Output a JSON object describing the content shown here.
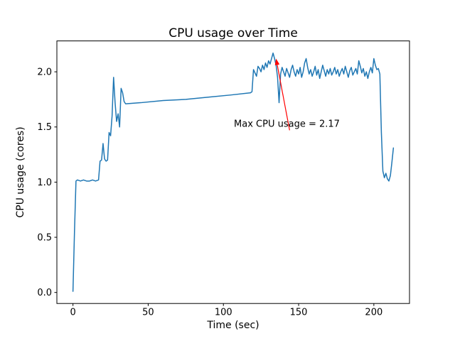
{
  "figure": {
    "background": "#ffffff"
  },
  "chart_data": {
    "type": "line",
    "title": "CPU usage over Time",
    "xlabel": "Time (sec)",
    "ylabel": "CPU usage (cores)",
    "xlim": [
      -10.7,
      223.7
    ],
    "ylim": [
      -0.1,
      2.28
    ],
    "x_ticks": [
      0,
      50,
      100,
      150,
      200
    ],
    "x_tick_labels": [
      "0",
      "50",
      "100",
      "150",
      "200"
    ],
    "y_ticks": [
      0,
      0.5,
      1,
      1.5,
      2
    ],
    "y_tick_labels": [
      "0.0",
      "0.5",
      "1.0",
      "1.5",
      "2.0"
    ],
    "grid": false,
    "series": [
      {
        "name": "CPU usage",
        "color": "#1f77b4",
        "x": [
          0,
          1,
          2,
          3,
          5,
          7,
          9,
          11,
          13,
          15,
          17,
          18,
          19,
          20,
          21,
          22,
          23,
          24,
          25,
          26,
          27,
          28,
          29,
          30,
          31,
          32,
          33,
          34,
          35,
          45,
          60,
          75,
          90,
          105,
          118,
          119,
          120,
          121,
          122,
          123,
          124,
          125,
          126,
          127,
          128,
          129,
          130,
          131,
          132,
          133,
          134,
          135,
          136,
          137,
          138,
          139,
          140,
          141,
          142,
          143,
          144,
          145,
          146,
          147,
          148,
          149,
          150,
          151,
          152,
          153,
          154,
          155,
          156,
          157,
          158,
          159,
          160,
          161,
          162,
          163,
          164,
          165,
          166,
          167,
          168,
          169,
          170,
          171,
          172,
          173,
          174,
          175,
          176,
          177,
          178,
          179,
          180,
          181,
          182,
          183,
          184,
          185,
          186,
          187,
          188,
          189,
          190,
          191,
          192,
          193,
          194,
          195,
          196,
          197,
          198,
          199,
          200,
          201,
          202,
          203,
          204,
          205,
          206,
          207,
          208,
          209,
          210,
          211,
          212,
          213
        ],
        "y": [
          0.01,
          0.55,
          1.01,
          1.02,
          1.01,
          1.02,
          1.01,
          1.01,
          1.02,
          1.01,
          1.02,
          1.19,
          1.2,
          1.35,
          1.21,
          1.19,
          1.2,
          1.45,
          1.42,
          1.6,
          1.95,
          1.72,
          1.55,
          1.62,
          1.5,
          1.85,
          1.81,
          1.73,
          1.71,
          1.72,
          1.74,
          1.75,
          1.77,
          1.79,
          1.81,
          1.82,
          2.02,
          1.99,
          1.96,
          2.05,
          2.03,
          2.0,
          2.06,
          2.02,
          2.08,
          2.04,
          2.1,
          2.07,
          2.12,
          2.17,
          2.12,
          2.06,
          1.95,
          1.72,
          1.98,
          2.04,
          2.0,
          1.96,
          2.03,
          1.99,
          1.95,
          2.02,
          2.06,
          2.0,
          1.96,
          2.02,
          1.98,
          2.04,
          1.95,
          2.0,
          2.08,
          2.12,
          2.04,
          1.98,
          2.02,
          1.96,
          2.0,
          2.05,
          1.97,
          2.02,
          1.94,
          2.0,
          2.06,
          2.01,
          1.96,
          2.02,
          1.98,
          2.03,
          1.97,
          2.0,
          2.04,
          1.98,
          2.02,
          1.96,
          2.0,
          2.03,
          1.98,
          2.05,
          2.0,
          1.95,
          2.01,
          2.04,
          1.97,
          2.0,
          2.03,
          1.98,
          2.1,
          2.05,
          1.99,
          2.03,
          1.96,
          2.0,
          1.94,
          2.0,
          2.04,
          1.99,
          2.12,
          2.06,
          2.02,
          2.03,
          1.98,
          1.45,
          1.1,
          1.04,
          1.08,
          1.03,
          1.01,
          1.06,
          1.18,
          1.31
        ]
      }
    ],
    "annotation": {
      "text": "Max CPU usage = 2.17",
      "color": "#ff0000",
      "max_value": 2.17,
      "point_xy": [
        133,
        2.17
      ],
      "text_xy": [
        107,
        1.5
      ],
      "arrow_tail_xy": [
        144,
        1.47
      ],
      "arrow_head_xy": [
        135,
        2.12
      ]
    }
  }
}
